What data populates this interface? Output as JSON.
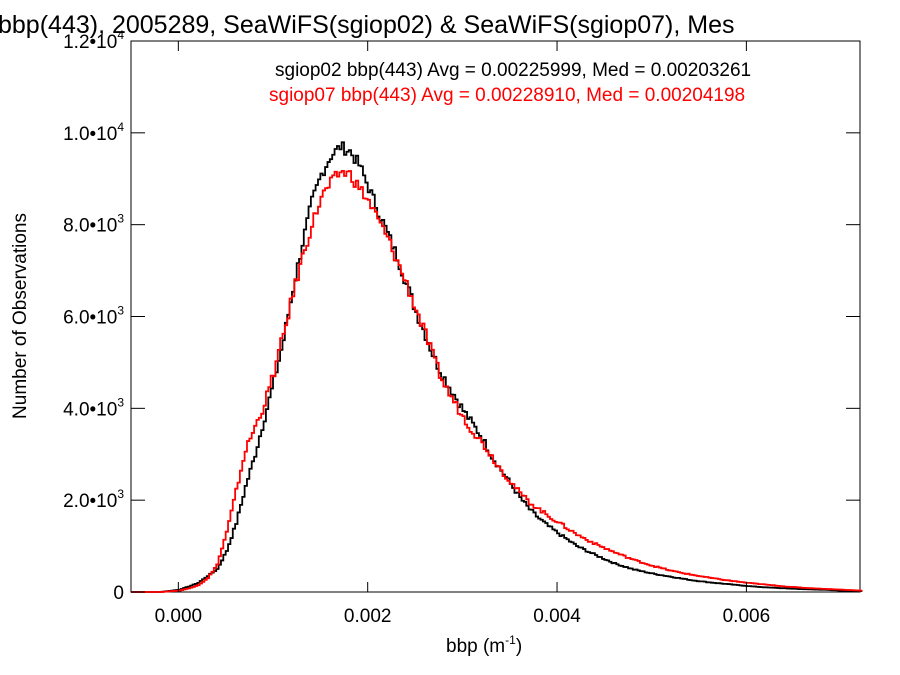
{
  "chart_data": {
    "type": "line",
    "title": "bbp(443), 2005289, SeaWiFS(sgiop02) & SeaWiFS(sgiop07), Mes",
    "xlabel": "bbp (m",
    "xlabel_sup": "-1",
    "xlabel_close": ")",
    "ylabel": "Number of Observations",
    "xlim": [
      -0.0005,
      0.0072
    ],
    "ylim": [
      0,
      12000
    ],
    "x_ticks": [
      {
        "value": 0.0,
        "label": "0.000"
      },
      {
        "value": 0.002,
        "label": "0.002"
      },
      {
        "value": 0.004,
        "label": "0.004"
      },
      {
        "value": 0.006,
        "label": "0.006"
      }
    ],
    "y_ticks": [
      {
        "value": 0,
        "label": "0",
        "exp": ""
      },
      {
        "value": 2000,
        "label": "2.0•10",
        "exp": "3"
      },
      {
        "value": 4000,
        "label": "4.0•10",
        "exp": "3"
      },
      {
        "value": 6000,
        "label": "6.0•10",
        "exp": "3"
      },
      {
        "value": 8000,
        "label": "8.0•10",
        "exp": "3"
      },
      {
        "value": 10000,
        "label": "1.0•10",
        "exp": "4"
      },
      {
        "value": 12000,
        "label": "1.2•10",
        "exp": "4"
      }
    ],
    "annotations": [
      {
        "text": "sgiop02 bbp(443) Avg = 0.00225999, Med = 0.00203261",
        "color": "#000000"
      },
      {
        "text": "sgiop07 bbp(443) Avg = 0.00228910, Med = 0.00204198",
        "color": "#ff0000"
      }
    ],
    "series": [
      {
        "color": "#000000",
        "x": [
          -0.0005,
          -0.0002,
          0.0,
          0.0001,
          0.0002,
          0.0003,
          0.0004,
          0.0005,
          0.0006,
          0.0007,
          0.0008,
          0.0009,
          0.001,
          0.0011,
          0.0012,
          0.0013,
          0.0014,
          0.0015,
          0.0016,
          0.0017,
          0.0018,
          0.0019,
          0.002,
          0.0021,
          0.0022,
          0.0023,
          0.0024,
          0.0025,
          0.0026,
          0.0027,
          0.0028,
          0.0029,
          0.003,
          0.0031,
          0.0032,
          0.0033,
          0.0034,
          0.0035,
          0.0036,
          0.0037,
          0.0038,
          0.0039,
          0.004,
          0.0042,
          0.0044,
          0.0046,
          0.0048,
          0.005,
          0.0052,
          0.0054,
          0.0056,
          0.0058,
          0.006,
          0.0062,
          0.0064,
          0.0066,
          0.0068,
          0.007,
          0.0072
        ],
        "y": [
          0,
          0,
          50,
          120,
          200,
          350,
          500,
          900,
          1500,
          2300,
          3000,
          3800,
          4600,
          5500,
          6600,
          7600,
          8500,
          9100,
          9500,
          9700,
          9600,
          9300,
          8800,
          8300,
          7800,
          7300,
          6700,
          6100,
          5600,
          5050,
          4650,
          4300,
          3950,
          3650,
          3350,
          2950,
          2650,
          2350,
          2050,
          1800,
          1600,
          1430,
          1280,
          1000,
          800,
          620,
          490,
          400,
          330,
          260,
          210,
          170,
          130,
          100,
          80,
          60,
          50,
          30,
          20
        ]
      },
      {
        "color": "#ff0000",
        "x": [
          -0.0005,
          -0.0002,
          0.0,
          0.0001,
          0.0002,
          0.0003,
          0.0004,
          0.0005,
          0.0006,
          0.0007,
          0.0008,
          0.0009,
          0.001,
          0.0011,
          0.0012,
          0.0013,
          0.0014,
          0.0015,
          0.0016,
          0.0017,
          0.0018,
          0.0019,
          0.002,
          0.0021,
          0.0022,
          0.0023,
          0.0024,
          0.0025,
          0.0026,
          0.0027,
          0.0028,
          0.0029,
          0.003,
          0.0031,
          0.0032,
          0.0033,
          0.0034,
          0.0035,
          0.0036,
          0.0037,
          0.0038,
          0.0039,
          0.004,
          0.0042,
          0.0044,
          0.0046,
          0.0048,
          0.005,
          0.0052,
          0.0054,
          0.0056,
          0.0058,
          0.006,
          0.0062,
          0.0064,
          0.0066,
          0.0068,
          0.007,
          0.0072
        ],
        "y": [
          0,
          0,
          30,
          80,
          150,
          300,
          600,
          1300,
          2200,
          3100,
          3600,
          4100,
          4800,
          5600,
          6500,
          7300,
          8000,
          8600,
          8900,
          9150,
          9100,
          8800,
          8500,
          8100,
          7700,
          7200,
          6700,
          6150,
          5600,
          5000,
          4500,
          4150,
          3800,
          3500,
          3250,
          2950,
          2650,
          2400,
          2150,
          1950,
          1800,
          1650,
          1520,
          1250,
          1040,
          860,
          700,
          570,
          460,
          380,
          310,
          250,
          200,
          160,
          120,
          90,
          70,
          50,
          30
        ]
      }
    ]
  }
}
